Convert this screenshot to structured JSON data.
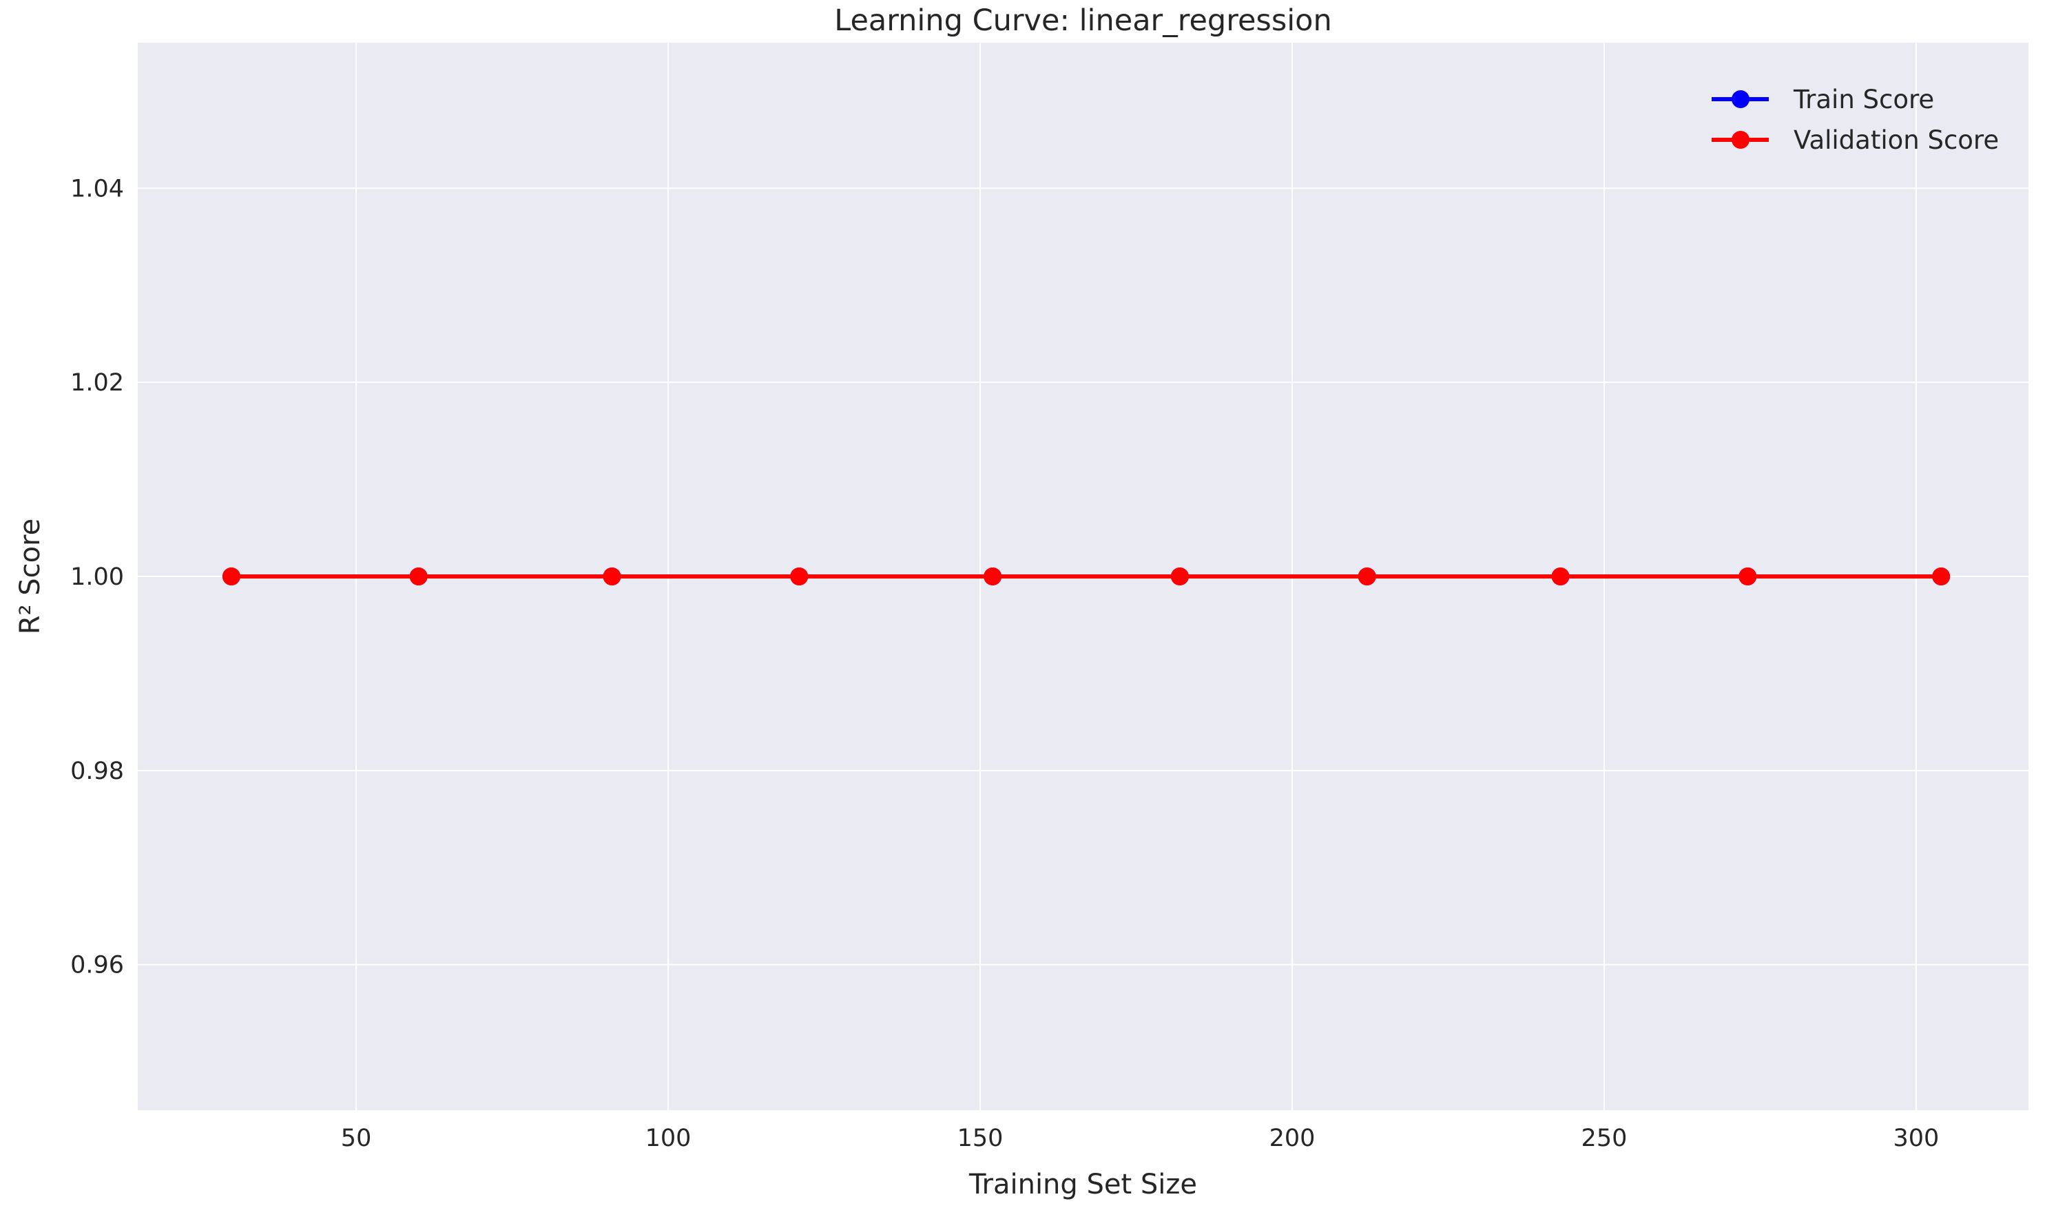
{
  "chart_data": {
    "type": "line",
    "title": "Learning Curve: linear_regression",
    "xlabel": "Training Set Size",
    "ylabel": "R² Score",
    "xlim": [
      15,
      318
    ],
    "ylim": [
      0.945,
      1.055
    ],
    "x_ticks": [
      50,
      100,
      150,
      200,
      250,
      300
    ],
    "x_tick_labels": [
      "50",
      "100",
      "150",
      "200",
      "250",
      "300"
    ],
    "y_ticks": [
      0.96,
      0.98,
      1.0,
      1.02,
      1.04
    ],
    "y_tick_labels": [
      "0.96",
      "0.98",
      "1.00",
      "1.02",
      "1.04"
    ],
    "grid": true,
    "legend_position": "top-right",
    "x": [
      30,
      60,
      91,
      121,
      152,
      182,
      212,
      243,
      273,
      304
    ],
    "series": [
      {
        "name": "Train Score",
        "color": "#0000ff",
        "values": [
          1.0,
          1.0,
          1.0,
          1.0,
          1.0,
          1.0,
          1.0,
          1.0,
          1.0,
          1.0
        ]
      },
      {
        "name": "Validation Score",
        "color": "#ff0000",
        "values": [
          1.0,
          1.0,
          1.0,
          1.0,
          1.0,
          1.0,
          1.0,
          1.0,
          1.0,
          1.0
        ]
      }
    ],
    "plot_background": "#eaeaf2",
    "grid_color": "#ffffff"
  }
}
